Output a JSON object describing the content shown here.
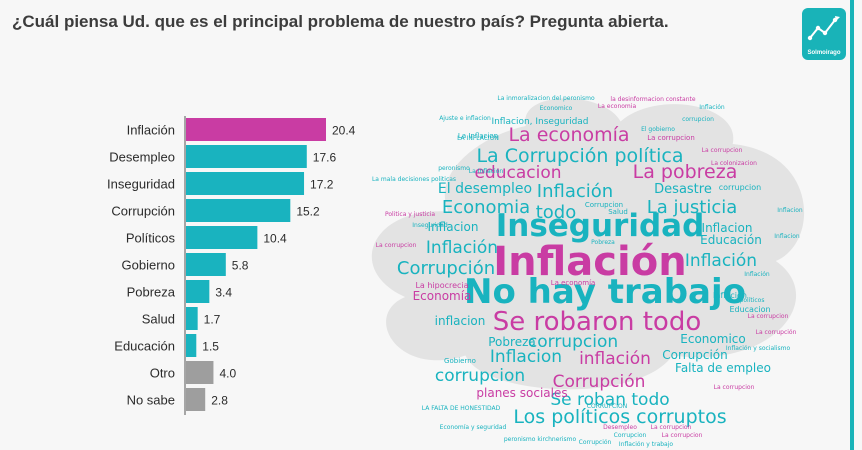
{
  "header": {
    "title": "¿Cuál piensa Ud. que es el principal problema de nuestro país? Pregunta abierta."
  },
  "logo": {
    "brand": "Solmoirago",
    "icon": "line-chart-icon",
    "color": "#19b3b8"
  },
  "chart_data": [
    {
      "type": "bar",
      "orientation": "horizontal",
      "title": "¿Cuál piensa Ud. que es el principal problema de nuestro país? Pregunta abierta.",
      "xlabel": "",
      "ylabel": "",
      "grid": false,
      "categories": [
        "Inflación",
        "Desempleo",
        "Inseguridad",
        "Corrupción",
        "Políticos",
        "Gobierno",
        "Pobreza",
        "Salud",
        "Educación",
        "Otro",
        "No sabe"
      ],
      "values": [
        20.4,
        17.6,
        17.2,
        15.2,
        10.4,
        5.8,
        3.4,
        1.7,
        1.5,
        4.0,
        2.8
      ],
      "value_labels": [
        "20.4",
        "17.6",
        "17.2",
        "15.2",
        "10.4",
        "5.8",
        "3.4",
        "1.7",
        "1.5",
        "4.0",
        "2.8"
      ],
      "xlim": [
        0,
        20.4
      ],
      "bar_colors": [
        "#c93ca3",
        "#19b3bf",
        "#19b3bf",
        "#19b3bf",
        "#19b3bf",
        "#19b3bf",
        "#19b3bf",
        "#19b3bf",
        "#19b3bf",
        "#9e9e9e",
        "#9e9e9e"
      ]
    },
    {
      "type": "word_cloud",
      "words": [
        {
          "text": "Inflación",
          "size": 40,
          "color": "#c93ca3",
          "weight": "bold"
        },
        {
          "text": "No hay trabajo",
          "size": 34,
          "color": "#19b3bf",
          "weight": "bold"
        },
        {
          "text": "Inseguridad",
          "size": 31,
          "color": "#19b3bf",
          "weight": "bold"
        },
        {
          "text": "Se robaron todo",
          "size": 26,
          "color": "#c93ca3",
          "weight": "normal"
        },
        {
          "text": "La Corrupción política",
          "size": 19,
          "color": "#19b3bf",
          "weight": "normal"
        },
        {
          "text": "La economía",
          "size": 19,
          "color": "#c93ca3",
          "weight": "normal"
        },
        {
          "text": "La pobreza",
          "size": 19,
          "color": "#c93ca3",
          "weight": "normal"
        },
        {
          "text": "Los políticos corruptos",
          "size": 19,
          "color": "#19b3bf",
          "weight": "normal"
        },
        {
          "text": "Economia",
          "size": 18,
          "color": "#19b3bf",
          "weight": "normal"
        },
        {
          "text": "todo",
          "size": 18,
          "color": "#19b3bf",
          "weight": "normal"
        },
        {
          "text": "La justicia",
          "size": 18,
          "color": "#19b3bf",
          "weight": "normal"
        },
        {
          "text": "Inflación",
          "size": 18,
          "color": "#19b3bf",
          "weight": "normal"
        },
        {
          "text": "Corrupción",
          "size": 18,
          "color": "#19b3bf",
          "weight": "normal"
        },
        {
          "text": "Corrupción",
          "size": 17,
          "color": "#c93ca3",
          "weight": "normal"
        },
        {
          "text": "educacion",
          "size": 17,
          "color": "#c93ca3",
          "weight": "normal"
        },
        {
          "text": "Inflación",
          "size": 17,
          "color": "#19b3bf",
          "weight": "normal"
        },
        {
          "text": "Inflación",
          "size": 17,
          "color": "#19b3bf",
          "weight": "normal"
        },
        {
          "text": "corrupcion",
          "size": 17,
          "color": "#19b3bf",
          "weight": "normal"
        },
        {
          "text": "Inflacion",
          "size": 17,
          "color": "#19b3bf",
          "weight": "normal"
        },
        {
          "text": "inflación",
          "size": 17,
          "color": "#c93ca3",
          "weight": "normal"
        },
        {
          "text": "corrupcion",
          "size": 17,
          "color": "#19b3bf",
          "weight": "normal"
        },
        {
          "text": "Se roban todo",
          "size": 17,
          "color": "#19b3bf",
          "weight": "normal"
        },
        {
          "text": "El desempleo",
          "size": 14,
          "color": "#19b3bf",
          "weight": "normal"
        },
        {
          "text": "Desastre",
          "size": 13,
          "color": "#19b3bf",
          "weight": "normal"
        },
        {
          "text": "Inflacion",
          "size": 12,
          "color": "#19b3bf",
          "weight": "normal"
        },
        {
          "text": "Inflacion",
          "size": 12,
          "color": "#19b3bf",
          "weight": "normal"
        },
        {
          "text": "Educación",
          "size": 12,
          "color": "#19b3bf",
          "weight": "normal"
        },
        {
          "text": "Economía",
          "size": 12,
          "color": "#c93ca3",
          "weight": "normal"
        },
        {
          "text": "inflacion",
          "size": 12,
          "color": "#19b3bf",
          "weight": "normal"
        },
        {
          "text": "Pobreza",
          "size": 12,
          "color": "#19b3bf",
          "weight": "normal"
        },
        {
          "text": "Economico",
          "size": 12,
          "color": "#19b3bf",
          "weight": "normal"
        },
        {
          "text": "Corrupción",
          "size": 12,
          "color": "#19b3bf",
          "weight": "normal"
        },
        {
          "text": "Falta de empleo",
          "size": 12,
          "color": "#19b3bf",
          "weight": "normal"
        },
        {
          "text": "planes sociales",
          "size": 12,
          "color": "#c93ca3",
          "weight": "normal"
        },
        {
          "text": "Inflacion, Inseguridad",
          "size": 9,
          "color": "#19b3bf",
          "weight": "normal"
        },
        {
          "text": "corrupcion",
          "size": 8,
          "color": "#19b3bf",
          "weight": "normal"
        },
        {
          "text": "La corrupcion",
          "size": 7,
          "color": "#c93ca3",
          "weight": "normal"
        },
        {
          "text": "La Inflacion",
          "size": 7,
          "color": "#19b3bf",
          "weight": "normal"
        },
        {
          "text": "La hipocrecia",
          "size": 8,
          "color": "#c93ca3",
          "weight": "normal"
        },
        {
          "text": "Educacion",
          "size": 8,
          "color": "#19b3bf",
          "weight": "normal"
        },
        {
          "text": "Inflación",
          "size": 8,
          "color": "#19b3bf",
          "weight": "normal"
        },
        {
          "text": "Salud",
          "size": 7,
          "color": "#19b3bf",
          "weight": "normal"
        },
        {
          "text": "Corrupcion",
          "size": 7,
          "color": "#19b3bf",
          "weight": "normal"
        },
        {
          "text": "Gobierno",
          "size": 7,
          "color": "#19b3bf",
          "weight": "normal"
        },
        {
          "text": "La economía",
          "size": 7,
          "color": "#c93ca3",
          "weight": "normal"
        },
        {
          "text": "La colonizacion",
          "size": 6,
          "color": "#c93ca3",
          "weight": "normal"
        },
        {
          "text": "La inmoralizacion del peronismo",
          "size": 6,
          "color": "#19b3bf",
          "weight": "normal"
        },
        {
          "text": "la desinformacion constante",
          "size": 6,
          "color": "#c93ca3",
          "weight": "normal"
        },
        {
          "text": "Economico",
          "size": 6,
          "color": "#19b3bf",
          "weight": "normal"
        },
        {
          "text": "La economia",
          "size": 6,
          "color": "#c93ca3",
          "weight": "normal"
        },
        {
          "text": "Inflación",
          "size": 6,
          "color": "#19b3bf",
          "weight": "normal"
        },
        {
          "text": "Ajuste e inflacion",
          "size": 6,
          "color": "#19b3bf",
          "weight": "normal"
        },
        {
          "text": "corrupcion",
          "size": 6,
          "color": "#19b3bf",
          "weight": "normal"
        },
        {
          "text": "El gobierno",
          "size": 6,
          "color": "#19b3bf",
          "weight": "normal"
        },
        {
          "text": "LA INFLACION",
          "size": 6,
          "color": "#19b3bf",
          "weight": "normal"
        },
        {
          "text": "La corrupcion",
          "size": 6,
          "color": "#c93ca3",
          "weight": "normal"
        },
        {
          "text": "peronismo",
          "size": 6,
          "color": "#19b3bf",
          "weight": "normal"
        },
        {
          "text": "La Inflacion",
          "size": 6,
          "color": "#19b3bf",
          "weight": "normal"
        },
        {
          "text": "La mala decisiones politicas",
          "size": 6,
          "color": "#19b3bf",
          "weight": "normal"
        },
        {
          "text": "Politica y justicia",
          "size": 6,
          "color": "#c93ca3",
          "weight": "normal"
        },
        {
          "text": "Inseguridad",
          "size": 6,
          "color": "#19b3bf",
          "weight": "normal"
        },
        {
          "text": "La corrupcion",
          "size": 6,
          "color": "#c93ca3",
          "weight": "normal"
        },
        {
          "text": "Pobreza",
          "size": 6,
          "color": "#19b3bf",
          "weight": "normal"
        },
        {
          "text": "Inflacion",
          "size": 6,
          "color": "#19b3bf",
          "weight": "normal"
        },
        {
          "text": "Inflación",
          "size": 6,
          "color": "#19b3bf",
          "weight": "normal"
        },
        {
          "text": "Inflacion",
          "size": 6,
          "color": "#19b3bf",
          "weight": "normal"
        },
        {
          "text": "políticos",
          "size": 6,
          "color": "#19b3bf",
          "weight": "normal"
        },
        {
          "text": "La corrupcion",
          "size": 6,
          "color": "#c93ca3",
          "weight": "normal"
        },
        {
          "text": "La corrupción",
          "size": 6,
          "color": "#c93ca3",
          "weight": "normal"
        },
        {
          "text": "Inflación y socialismo",
          "size": 6,
          "color": "#19b3bf",
          "weight": "normal"
        },
        {
          "text": "La corrupcion",
          "size": 6,
          "color": "#c93ca3",
          "weight": "normal"
        },
        {
          "text": "LA FALTA DE HONESTIDAD",
          "size": 6,
          "color": "#19b3bf",
          "weight": "normal"
        },
        {
          "text": "CORRUPCION",
          "size": 6,
          "color": "#19b3bf",
          "weight": "normal"
        },
        {
          "text": "Economía y seguridad",
          "size": 6,
          "color": "#19b3bf",
          "weight": "normal"
        },
        {
          "text": "Desempleo",
          "size": 6,
          "color": "#c93ca3",
          "weight": "normal"
        },
        {
          "text": "La corrupcion",
          "size": 6,
          "color": "#c93ca3",
          "weight": "normal"
        },
        {
          "text": "peronismo kirchnerismo",
          "size": 6,
          "color": "#19b3bf",
          "weight": "normal"
        },
        {
          "text": "Corrupción",
          "size": 6,
          "color": "#19b3bf",
          "weight": "normal"
        },
        {
          "text": "Corrupcion",
          "size": 6,
          "color": "#19b3bf",
          "weight": "normal"
        },
        {
          "text": "Inflación y trabajo",
          "size": 6,
          "color": "#19b3bf",
          "weight": "normal"
        },
        {
          "text": "La corrupcion",
          "size": 6,
          "color": "#c93ca3",
          "weight": "normal"
        }
      ]
    }
  ]
}
